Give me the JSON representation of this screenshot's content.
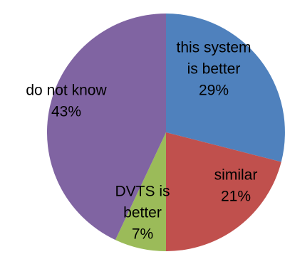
{
  "chart_data": {
    "type": "pie",
    "title": "",
    "slices": [
      {
        "label_lines": [
          "this system",
          "is better"
        ],
        "percent_label": "29%",
        "value": 29,
        "color": "#4F81BD"
      },
      {
        "label_lines": [
          "similar"
        ],
        "percent_label": "21%",
        "value": 21,
        "color": "#C0504D"
      },
      {
        "label_lines": [
          "DVTS is",
          "better"
        ],
        "percent_label": "7%",
        "value": 7,
        "color": "#9BBB59"
      },
      {
        "label_lines": [
          "do not know"
        ],
        "percent_label": "43%",
        "value": 43,
        "color": "#8064A2"
      }
    ],
    "start_angle": "12 o'clock",
    "direction": "clockwise",
    "legend": "none"
  }
}
